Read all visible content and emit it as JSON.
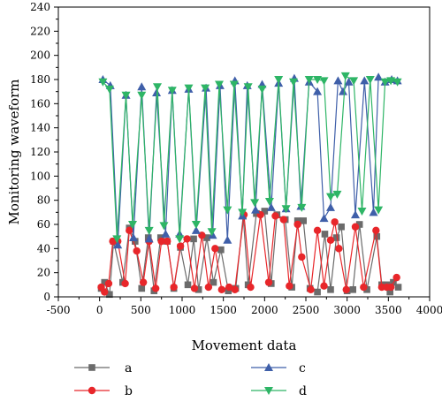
{
  "chart_data": {
    "type": "line",
    "title": "",
    "xlabel": "Movement data",
    "ylabel": "Monitoring waveform",
    "xlim": [
      -500,
      4000
    ],
    "ylim": [
      0,
      240
    ],
    "xticks": [
      -500,
      0,
      500,
      1000,
      1500,
      2000,
      2500,
      3000,
      3500,
      4000
    ],
    "yticks": [
      0,
      20,
      40,
      60,
      80,
      100,
      120,
      140,
      160,
      180,
      200,
      220,
      240
    ],
    "grid": false,
    "legend_position": "bottom",
    "series": [
      {
        "name": "a",
        "color": "#6b6b6b",
        "marker": "square",
        "points": [
          [
            20,
            7
          ],
          [
            60,
            12
          ],
          [
            120,
            2
          ],
          [
            170,
            46
          ],
          [
            280,
            12
          ],
          [
            360,
            57
          ],
          [
            430,
            46
          ],
          [
            510,
            7
          ],
          [
            590,
            49
          ],
          [
            660,
            5
          ],
          [
            740,
            49
          ],
          [
            820,
            46
          ],
          [
            900,
            7
          ],
          [
            980,
            41
          ],
          [
            1070,
            10
          ],
          [
            1140,
            48
          ],
          [
            1200,
            6
          ],
          [
            1300,
            49
          ],
          [
            1380,
            12
          ],
          [
            1470,
            39
          ],
          [
            1560,
            5
          ],
          [
            1650,
            7
          ],
          [
            1740,
            67
          ],
          [
            1800,
            10
          ],
          [
            1900,
            69
          ],
          [
            2000,
            71
          ],
          [
            2080,
            11
          ],
          [
            2150,
            68
          ],
          [
            2250,
            64
          ],
          [
            2330,
            8
          ],
          [
            2400,
            63
          ],
          [
            2470,
            63
          ],
          [
            2550,
            7
          ],
          [
            2640,
            4
          ],
          [
            2730,
            52
          ],
          [
            2800,
            6
          ],
          [
            2870,
            49
          ],
          [
            2930,
            58
          ],
          [
            3000,
            5
          ],
          [
            3070,
            6
          ],
          [
            3150,
            60
          ],
          [
            3240,
            6
          ],
          [
            3360,
            50
          ],
          [
            3420,
            10
          ],
          [
            3480,
            10
          ],
          [
            3520,
            4
          ],
          [
            3560,
            12
          ],
          [
            3620,
            8
          ]
        ]
      },
      {
        "name": "b",
        "color": "#e8262a",
        "marker": "circle",
        "points": [
          [
            20,
            8
          ],
          [
            60,
            4
          ],
          [
            110,
            11
          ],
          [
            160,
            46
          ],
          [
            220,
            46
          ],
          [
            310,
            11
          ],
          [
            360,
            55
          ],
          [
            450,
            38
          ],
          [
            530,
            12
          ],
          [
            600,
            46
          ],
          [
            680,
            7
          ],
          [
            750,
            46
          ],
          [
            820,
            46
          ],
          [
            900,
            8
          ],
          [
            980,
            42
          ],
          [
            1060,
            48
          ],
          [
            1150,
            7
          ],
          [
            1240,
            51
          ],
          [
            1320,
            8
          ],
          [
            1400,
            40
          ],
          [
            1480,
            6
          ],
          [
            1570,
            8
          ],
          [
            1640,
            6
          ],
          [
            1750,
            68
          ],
          [
            1830,
            8
          ],
          [
            1950,
            68
          ],
          [
            2050,
            12
          ],
          [
            2130,
            67
          ],
          [
            2230,
            64
          ],
          [
            2300,
            9
          ],
          [
            2400,
            60
          ],
          [
            2450,
            33
          ],
          [
            2560,
            6
          ],
          [
            2640,
            55
          ],
          [
            2720,
            9
          ],
          [
            2800,
            47
          ],
          [
            2850,
            62
          ],
          [
            2900,
            40
          ],
          [
            2990,
            6
          ],
          [
            3100,
            58
          ],
          [
            3200,
            8
          ],
          [
            3350,
            55
          ],
          [
            3420,
            8
          ],
          [
            3480,
            8
          ],
          [
            3530,
            8
          ],
          [
            3600,
            16
          ]
        ]
      },
      {
        "name": "c",
        "color": "#3f5fa9",
        "marker": "triangle-up",
        "points": [
          [
            40,
            180
          ],
          [
            130,
            175
          ],
          [
            220,
            43
          ],
          [
            320,
            167
          ],
          [
            410,
            49
          ],
          [
            510,
            174
          ],
          [
            600,
            48
          ],
          [
            690,
            169
          ],
          [
            800,
            52
          ],
          [
            880,
            171
          ],
          [
            970,
            52
          ],
          [
            1080,
            172
          ],
          [
            1170,
            55
          ],
          [
            1290,
            173
          ],
          [
            1370,
            51
          ],
          [
            1460,
            175
          ],
          [
            1550,
            47
          ],
          [
            1640,
            179
          ],
          [
            1730,
            67
          ],
          [
            1790,
            175
          ],
          [
            1890,
            72
          ],
          [
            1970,
            176
          ],
          [
            2080,
            74
          ],
          [
            2170,
            177
          ],
          [
            2260,
            73
          ],
          [
            2360,
            181
          ],
          [
            2440,
            75
          ],
          [
            2540,
            178
          ],
          [
            2640,
            170
          ],
          [
            2720,
            65
          ],
          [
            2800,
            74
          ],
          [
            2890,
            179
          ],
          [
            2950,
            170
          ],
          [
            3020,
            178
          ],
          [
            3100,
            68
          ],
          [
            3210,
            179
          ],
          [
            3320,
            70
          ],
          [
            3380,
            182
          ],
          [
            3460,
            178
          ],
          [
            3540,
            180
          ],
          [
            3610,
            179
          ]
        ]
      },
      {
        "name": "d",
        "color": "#2eb566",
        "marker": "triangle-down",
        "points": [
          [
            40,
            178
          ],
          [
            120,
            172
          ],
          [
            210,
            48
          ],
          [
            320,
            167
          ],
          [
            400,
            60
          ],
          [
            510,
            167
          ],
          [
            600,
            55
          ],
          [
            700,
            174
          ],
          [
            780,
            59
          ],
          [
            880,
            171
          ],
          [
            970,
            48
          ],
          [
            1080,
            173
          ],
          [
            1170,
            60
          ],
          [
            1280,
            173
          ],
          [
            1360,
            54
          ],
          [
            1450,
            176
          ],
          [
            1550,
            72
          ],
          [
            1630,
            176
          ],
          [
            1730,
            70
          ],
          [
            1800,
            174
          ],
          [
            1880,
            78
          ],
          [
            1970,
            172
          ],
          [
            2060,
            79
          ],
          [
            2170,
            180
          ],
          [
            2260,
            73
          ],
          [
            2350,
            178
          ],
          [
            2450,
            74
          ],
          [
            2540,
            180
          ],
          [
            2640,
            180
          ],
          [
            2720,
            179
          ],
          [
            2800,
            83
          ],
          [
            2880,
            85
          ],
          [
            2980,
            183
          ],
          [
            3080,
            179
          ],
          [
            3180,
            71
          ],
          [
            3280,
            180
          ],
          [
            3380,
            72
          ],
          [
            3460,
            178
          ],
          [
            3530,
            179
          ],
          [
            3610,
            178
          ]
        ]
      }
    ]
  }
}
